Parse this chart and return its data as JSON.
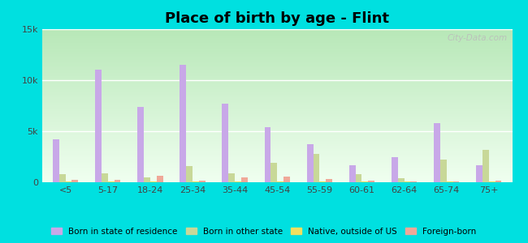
{
  "title": "Place of birth by age - Flint",
  "categories": [
    "<5",
    "5-17",
    "18-24",
    "25-34",
    "35-44",
    "45-54",
    "55-59",
    "60-61",
    "62-64",
    "65-74",
    "75+"
  ],
  "series": {
    "Born in state of residence": [
      4200,
      11000,
      7400,
      11500,
      7700,
      5400,
      3700,
      1700,
      2500,
      5800,
      1700
    ],
    "Born in other state": [
      800,
      900,
      450,
      1600,
      900,
      1900,
      2800,
      800,
      400,
      2200,
      3200
    ],
    "Native, outside of US": [
      50,
      50,
      50,
      50,
      50,
      50,
      50,
      50,
      50,
      50,
      50
    ],
    "Foreign-born": [
      200,
      250,
      600,
      150,
      500,
      550,
      300,
      150,
      100,
      100,
      150
    ]
  },
  "colors": {
    "Born in state of residence": "#c8a8e8",
    "Born in other state": "#c8d898",
    "Native, outside of US": "#f0e060",
    "Foreign-born": "#f0a898"
  },
  "background_color": "#00e0e0",
  "ylim": [
    0,
    15000
  ],
  "yticks": [
    0,
    5000,
    10000,
    15000
  ],
  "ytick_labels": [
    "0",
    "5k",
    "10k",
    "15k"
  ],
  "bar_width": 0.15,
  "title_fontsize": 13,
  "tick_fontsize": 8,
  "legend_fontsize": 7.5,
  "watermark": "City-Data.com",
  "grad_top_color": "#b8e8b8",
  "grad_bottom_color": "#f0fff0"
}
